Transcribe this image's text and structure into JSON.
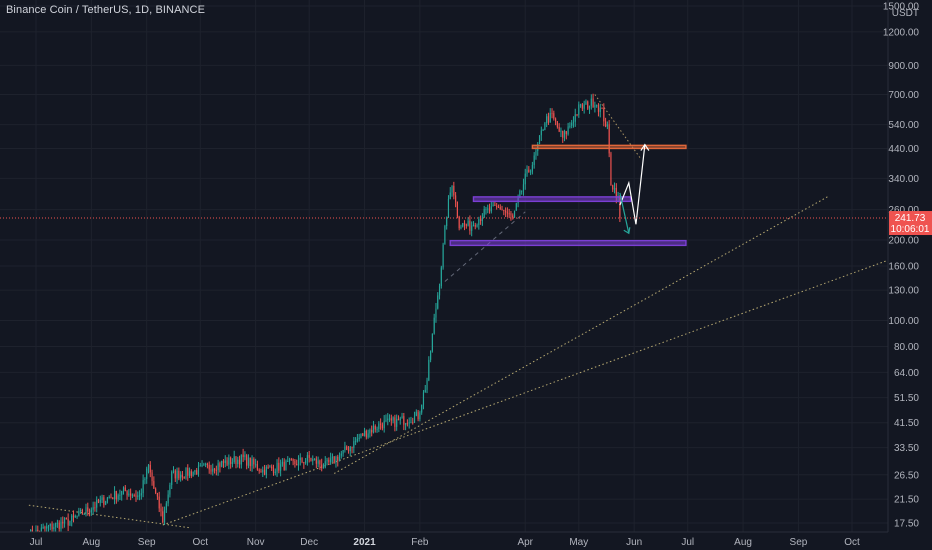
{
  "header": {
    "symbol_title": "Binance Coin / TetherUS, 1D, BINANCE"
  },
  "colors": {
    "background": "#131722",
    "grid": "#1e222d",
    "up": "#26a69a",
    "down": "#ef5350",
    "trendline": "#c9b97a",
    "support_orange": "#e0673a",
    "zone_purple": "#7b3fd4",
    "price_line": "#ef5350",
    "projection": "#ffffff"
  },
  "chart_data": {
    "type": "candlestick",
    "title": "Binance Coin / TetherUS, 1D, BINANCE",
    "y_scale": "log",
    "y_currency": "USDT",
    "ylim": [
      17,
      1500
    ],
    "y_ticks": [
      1500,
      1200,
      900,
      700,
      540,
      440,
      340,
      260,
      200,
      160,
      130,
      100,
      80,
      64,
      51.5,
      41.5,
      33.5,
      26.5,
      21.5,
      17.5
    ],
    "y_tick_labels": [
      "1500.00",
      "1200.00",
      "900.00",
      "700.00",
      "540.00",
      "440.00",
      "340.00",
      "260.00",
      "200.00",
      "160.00",
      "130.00",
      "100.00",
      "80.00",
      "64.00",
      "51.50",
      "41.50",
      "33.50",
      "26.50",
      "21.50",
      "17.50"
    ],
    "x_range": [
      "2020-06-27",
      "2021-10-31"
    ],
    "x_ticks": [
      {
        "date": "2020-07-01",
        "label": "Jul"
      },
      {
        "date": "2020-08-01",
        "label": "Aug"
      },
      {
        "date": "2020-09-01",
        "label": "Sep"
      },
      {
        "date": "2020-10-01",
        "label": "Oct"
      },
      {
        "date": "2020-11-01",
        "label": "Nov"
      },
      {
        "date": "2020-12-01",
        "label": "Dec"
      },
      {
        "date": "2021-01-01",
        "label": "2021",
        "bold": true
      },
      {
        "date": "2021-02-01",
        "label": "Feb"
      },
      {
        "date": "2021-04-01",
        "label": "Apr"
      },
      {
        "date": "2021-05-01",
        "label": "May"
      },
      {
        "date": "2021-06-01",
        "label": "Jun"
      },
      {
        "date": "2021-07-01",
        "label": "Jul"
      },
      {
        "date": "2021-08-01",
        "label": "Aug"
      },
      {
        "date": "2021-09-01",
        "label": "Sep"
      },
      {
        "date": "2021-10-01",
        "label": "Oct"
      }
    ],
    "price_path": [
      [
        "2020-06-27",
        15.8
      ],
      [
        "2020-07-10",
        17.0
      ],
      [
        "2020-07-20",
        17.8
      ],
      [
        "2020-07-31",
        19.8
      ],
      [
        "2020-08-10",
        21.7
      ],
      [
        "2020-08-20",
        23.0
      ],
      [
        "2020-08-28",
        22.0
      ],
      [
        "2020-09-02",
        28.5
      ],
      [
        "2020-09-05",
        23.5
      ],
      [
        "2020-09-10",
        18.0
      ],
      [
        "2020-09-15",
        26.5
      ],
      [
        "2020-09-25",
        27.0
      ],
      [
        "2020-10-05",
        28.2
      ],
      [
        "2020-10-15",
        29.5
      ],
      [
        "2020-10-25",
        30.5
      ],
      [
        "2020-11-05",
        27.5
      ],
      [
        "2020-11-15",
        28.5
      ],
      [
        "2020-11-25",
        29.5
      ],
      [
        "2020-12-01",
        30.5
      ],
      [
        "2020-12-10",
        28.5
      ],
      [
        "2020-12-20",
        32.0
      ],
      [
        "2020-12-31",
        37.5
      ],
      [
        "2021-01-10",
        41.0
      ],
      [
        "2021-01-20",
        42.0
      ],
      [
        "2021-01-31",
        44.0
      ],
      [
        "2021-02-05",
        60.0
      ],
      [
        "2021-02-09",
        100.0
      ],
      [
        "2021-02-12",
        140.0
      ],
      [
        "2021-02-16",
        250.0
      ],
      [
        "2021-02-19",
        330.0
      ],
      [
        "2021-02-23",
        230.0
      ],
      [
        "2021-03-01",
        225.0
      ],
      [
        "2021-03-10",
        255.0
      ],
      [
        "2021-03-18",
        265.0
      ],
      [
        "2021-03-25",
        240.0
      ],
      [
        "2021-04-01",
        340.0
      ],
      [
        "2021-04-06",
        400.0
      ],
      [
        "2021-04-12",
        560.0
      ],
      [
        "2021-04-16",
        580.0
      ],
      [
        "2021-04-22",
        480.0
      ],
      [
        "2021-05-01",
        620.0
      ],
      [
        "2021-05-10",
        660.0
      ],
      [
        "2021-05-14",
        600.0
      ],
      [
        "2021-05-17",
        520.0
      ],
      [
        "2021-05-19",
        330.0
      ],
      [
        "2021-05-22",
        300.0
      ],
      [
        "2021-05-24",
        265.0
      ]
    ],
    "last_price": 241.73,
    "last_price_label": "241.73",
    "countdown_label": "10:06:01",
    "horizontal_levels": [
      {
        "name": "resistance-orange",
        "price_high": 452,
        "price_low": 440,
        "from": "2021-04-05",
        "to": "2021-06-30",
        "color": "#e0673a"
      },
      {
        "name": "zone-purple-upper",
        "price_high": 290,
        "price_low": 279,
        "from": "2021-03-03",
        "to": "2021-05-30",
        "color": "#7b3fd4"
      },
      {
        "name": "zone-purple-lower",
        "price_high": 199,
        "price_low": 191,
        "from": "2021-02-18",
        "to": "2021-06-30",
        "color": "#7b3fd4"
      }
    ],
    "trendlines": [
      {
        "name": "trendline-major",
        "points": [
          [
            "2020-09-10",
            17.2
          ],
          [
            "2021-10-20",
            167
          ]
        ]
      },
      {
        "name": "trendline-steep",
        "points": [
          [
            "2020-12-15",
            26.8
          ],
          [
            "2021-09-18",
            292
          ]
        ]
      },
      {
        "name": "trendline-down-left",
        "points": [
          [
            "2020-06-27",
            20.4
          ],
          [
            "2020-09-25",
            16.8
          ]
        ]
      },
      {
        "name": "trendline-parabolic",
        "points": [
          [
            "2021-02-15",
            140
          ],
          [
            "2021-04-01",
            255
          ]
        ]
      },
      {
        "name": "trendline-top-decline",
        "points": [
          [
            "2021-05-10",
            700
          ],
          [
            "2021-06-05",
            400
          ]
        ]
      }
    ],
    "projection_path": [
      [
        "2021-05-24",
        270
      ],
      [
        "2021-05-29",
        327
      ],
      [
        "2021-06-02",
        229
      ],
      [
        "2021-06-07",
        455
      ]
    ],
    "projection_down": [
      [
        "2021-05-24",
        300
      ],
      [
        "2021-05-29",
        212
      ]
    ]
  }
}
